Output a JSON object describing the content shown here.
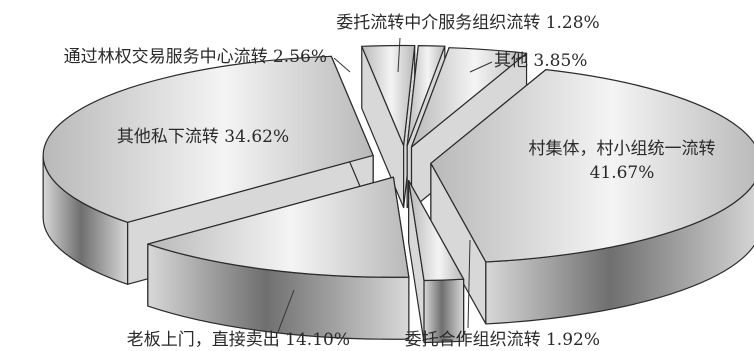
{
  "chart_data": {
    "type": "pie",
    "style": "3d-exploded",
    "grid": false,
    "legend": "none",
    "slices": [
      {
        "label": "村集体，村小组统一流转",
        "value": 41.67,
        "value_label": "41.67%"
      },
      {
        "label": "委托合作组织流转",
        "value": 1.92,
        "value_label": "1.92%"
      },
      {
        "label": "老板上门，直接卖出",
        "value": 14.1,
        "value_label": "14.10%"
      },
      {
        "label": "其他私下流转",
        "value": 34.62,
        "value_label": "34.62%"
      },
      {
        "label": "通过林权交易服务中心流转",
        "value": 2.56,
        "value_label": "2.56%"
      },
      {
        "label": "委托流转中介服务组织流转",
        "value": 1.28,
        "value_label": "1.28%"
      },
      {
        "label": "其他",
        "value": 3.85,
        "value_label": "3.85%"
      }
    ],
    "colors": {
      "top_light": "#f4f4f4",
      "top_dark": "#b9b9b9",
      "side_light": "#d8d8d8",
      "side_dark": "#6f6f6f",
      "edge": "#2b2b2b"
    }
  }
}
